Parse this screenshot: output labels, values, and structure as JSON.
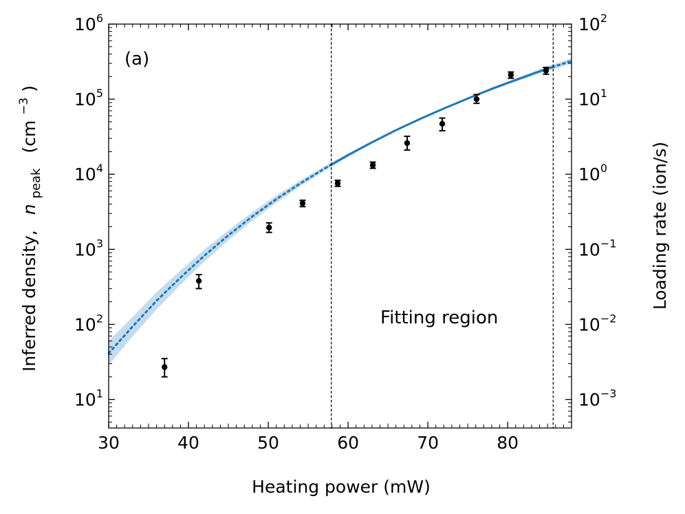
{
  "chart_data": {
    "type": "scatter",
    "panel_label": "(a)",
    "xlabel": "Heating power (mW)",
    "ylabel_left": {
      "prefix": "Inferred density,",
      "symbol": "n",
      "subscript": "peak",
      "unit_open": "(cm",
      "unit_exp": "−3",
      "unit_close": ")"
    },
    "ylabel_right": "Loading rate (ion/s)",
    "xlim": [
      30,
      88
    ],
    "ylim_left_log10": [
      0.62,
      6
    ],
    "ylim_right_log10": [
      -3.38,
      2
    ],
    "yscale": "log",
    "xticks": [
      {
        "value": 30,
        "label": "30"
      },
      {
        "value": 40,
        "label": "40"
      },
      {
        "value": 50,
        "label": "50"
      },
      {
        "value": 60,
        "label": "60"
      },
      {
        "value": 70,
        "label": "70"
      },
      {
        "value": 80,
        "label": "80"
      }
    ],
    "yticks_left": [
      {
        "exp": 1,
        "base": "10",
        "sup": "1"
      },
      {
        "exp": 2,
        "base": "10",
        "sup": "2"
      },
      {
        "exp": 3,
        "base": "10",
        "sup": "3"
      },
      {
        "exp": 4,
        "base": "10",
        "sup": "4"
      },
      {
        "exp": 5,
        "base": "10",
        "sup": "5"
      },
      {
        "exp": 6,
        "base": "10",
        "sup": "6"
      }
    ],
    "yticks_right": [
      {
        "exp": -3,
        "base": "10",
        "sup": "−3"
      },
      {
        "exp": -2,
        "base": "10",
        "sup": "−2"
      },
      {
        "exp": -1,
        "base": "10",
        "sup": "−1"
      },
      {
        "exp": 0,
        "base": "10",
        "sup": "0"
      },
      {
        "exp": 1,
        "base": "10",
        "sup": "1"
      },
      {
        "exp": 2,
        "base": "10",
        "sup": "2"
      }
    ],
    "data_points": [
      {
        "x": 37.0,
        "y": 27,
        "ylo": 20,
        "yhi": 35
      },
      {
        "x": 41.3,
        "y": 380,
        "ylo": 300,
        "yhi": 460
      },
      {
        "x": 50.1,
        "y": 1950,
        "ylo": 1680,
        "yhi": 2250
      },
      {
        "x": 54.3,
        "y": 4100,
        "ylo": 3700,
        "yhi": 4500
      },
      {
        "x": 58.7,
        "y": 7600,
        "ylo": 6900,
        "yhi": 8300
      },
      {
        "x": 63.1,
        "y": 13200,
        "ylo": 12000,
        "yhi": 14500
      },
      {
        "x": 67.4,
        "y": 26000,
        "ylo": 21000,
        "yhi": 32000
      },
      {
        "x": 71.8,
        "y": 47000,
        "ylo": 38000,
        "yhi": 56000
      },
      {
        "x": 76.1,
        "y": 100000,
        "ylo": 88000,
        "yhi": 115000
      },
      {
        "x": 80.4,
        "y": 210000,
        "ylo": 190000,
        "yhi": 230000
      },
      {
        "x": 84.8,
        "y": 240000,
        "ylo": 215000,
        "yhi": 265000
      }
    ],
    "fit": {
      "x": [
        30,
        33,
        36,
        39,
        42,
        45,
        48,
        51,
        54,
        57,
        60,
        63,
        66,
        69,
        72,
        75,
        78,
        81,
        84,
        86,
        88
      ],
      "y": [
        11,
        25,
        55,
        112,
        220,
        410,
        730,
        1240,
        2010,
        3150,
        4800,
        7100,
        10300,
        14500,
        20000,
        27200,
        36500,
        48000,
        62500,
        73500,
        86000
      ],
      "band_lo": [
        7.6,
        18.5,
        42,
        90,
        183,
        350,
        640,
        1110,
        1840,
        2930,
        4550,
        6850,
        10000,
        14150,
        19500,
        26300,
        35000,
        45500,
        58500,
        68000,
        79000
      ],
      "band_hi": [
        16,
        33.5,
        71.5,
        140,
        265,
        480,
        835,
        1390,
        2200,
        3390,
        5070,
        7360,
        10600,
        14850,
        20500,
        28100,
        38000,
        50500,
        66800,
        79500,
        93600
      ],
      "scale_to_density": 3.75,
      "fitting_region": [
        57.9,
        85.7
      ]
    },
    "vlines": [
      57.9,
      85.7
    ],
    "annotation": "Fitting region",
    "grid": false,
    "colors": {
      "fit_line": "#1f77b4",
      "band": "#c5dcef",
      "points": "#000000",
      "vlines": "#000000",
      "left_label": "#1f77b4"
    }
  }
}
